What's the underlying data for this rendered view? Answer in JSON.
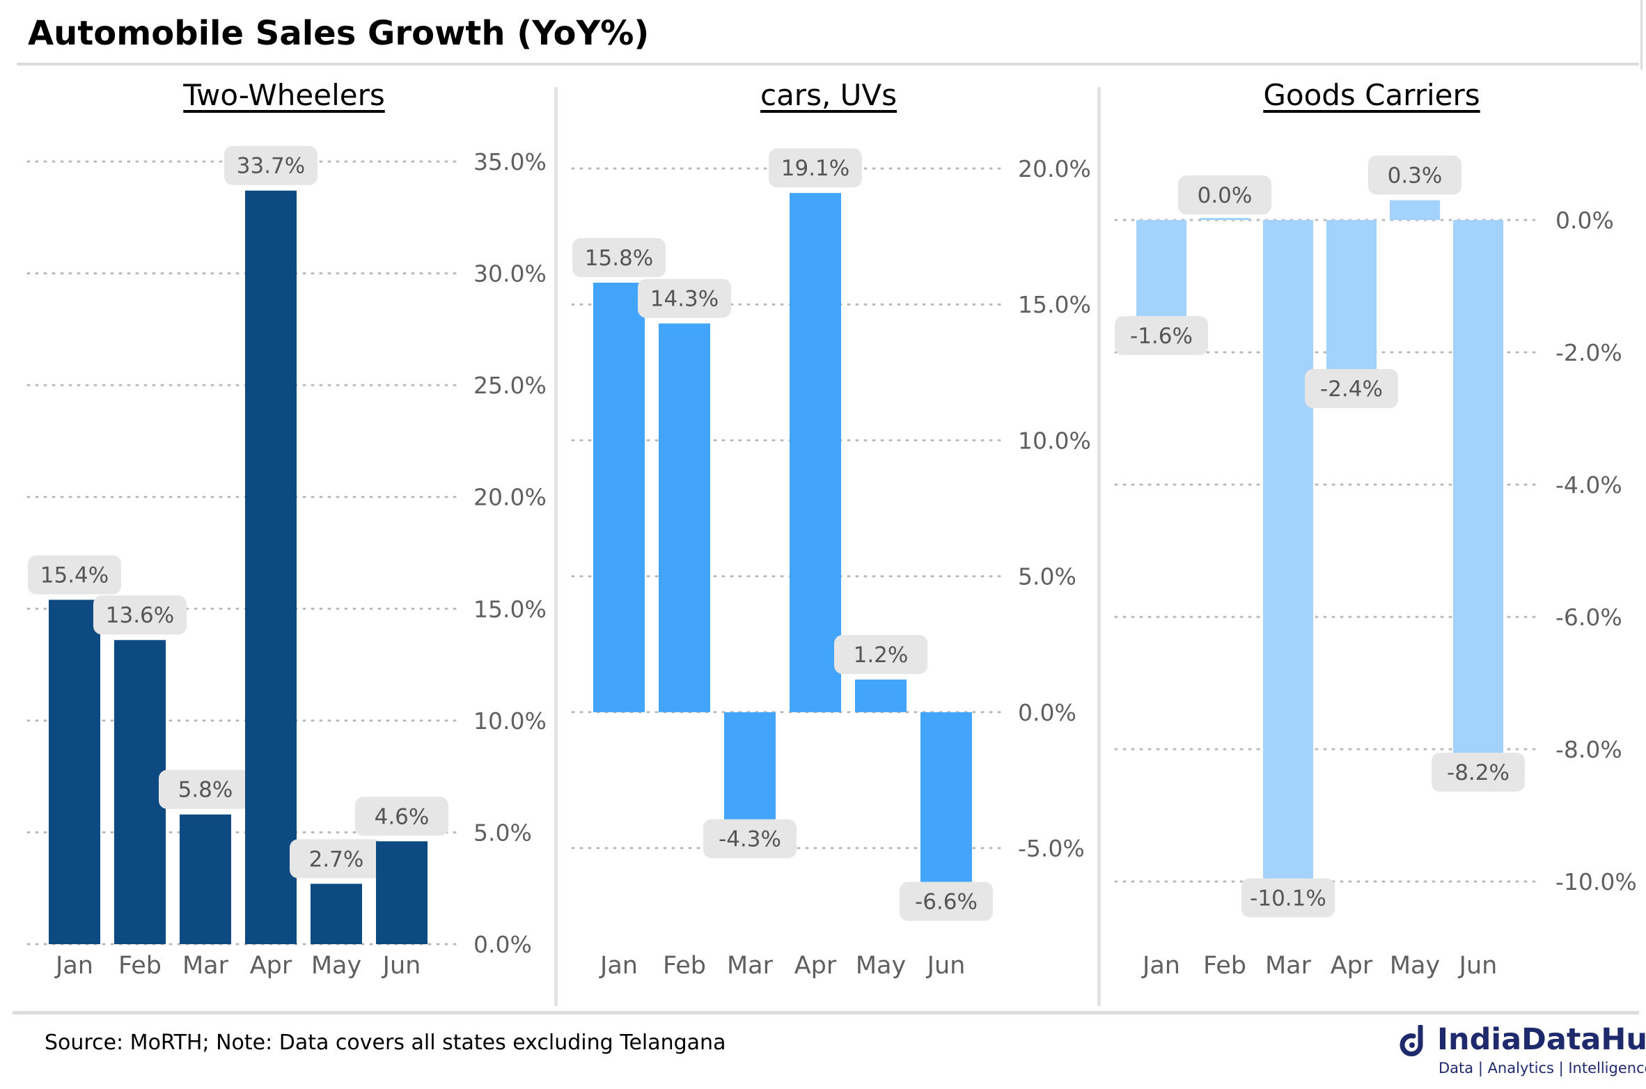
{
  "title": "Automobile Sales Growth (YoY%)",
  "source": "Source: MoRTH; Note: Data covers all states excluding Telangana",
  "logo": {
    "name": "IndiaDataHub",
    "tagline": "Data | Analytics | Intelligence",
    "color": "#1e2a6b"
  },
  "chart_data": [
    {
      "type": "bar",
      "title": "Two-Wheelers",
      "categories": [
        "Jan",
        "Feb",
        "Mar",
        "Apr",
        "May",
        "Jun"
      ],
      "values": [
        15.4,
        13.6,
        5.8,
        33.7,
        2.7,
        4.6
      ],
      "value_labels": [
        "15.4%",
        "13.6%",
        "5.8%",
        "33.7%",
        "2.7%",
        "4.6%"
      ],
      "ylim": [
        0,
        35
      ],
      "yticks": [
        0,
        5,
        10,
        15,
        20,
        25,
        30,
        35
      ],
      "ytick_labels": [
        "0.0%",
        "5.0%",
        "10.0%",
        "15.0%",
        "20.0%",
        "25.0%",
        "30.0%",
        "35.0%"
      ],
      "color": "#0d4a82",
      "grid": true,
      "yaxis_position": "right"
    },
    {
      "type": "bar",
      "title": "cars, UVs",
      "categories": [
        "Jan",
        "Feb",
        "Mar",
        "Apr",
        "May",
        "Jun"
      ],
      "values": [
        15.8,
        14.3,
        -4.3,
        19.1,
        1.2,
        -6.6
      ],
      "value_labels": [
        "15.8%",
        "14.3%",
        "-4.3%",
        "19.1%",
        "1.2%",
        "-6.6%"
      ],
      "ylim": [
        -5,
        20
      ],
      "yticks": [
        -5,
        0,
        5,
        10,
        15,
        20
      ],
      "ytick_labels": [
        "-5.0%",
        "0.0%",
        "5.0%",
        "10.0%",
        "15.0%",
        "20.0%"
      ],
      "color": "#42a5fb",
      "grid": true,
      "yaxis_position": "right"
    },
    {
      "type": "bar",
      "title": "Goods Carriers",
      "categories": [
        "Jan",
        "Feb",
        "Mar",
        "Apr",
        "May",
        "Jun"
      ],
      "values": [
        -1.6,
        0.0,
        -10.1,
        -2.4,
        0.3,
        -8.2
      ],
      "value_labels": [
        "-1.6%",
        "0.0%",
        "-10.1%",
        "-2.4%",
        "0.3%",
        "-8.2%"
      ],
      "ylim": [
        -10,
        0
      ],
      "yticks": [
        -10,
        -8,
        -6,
        -4,
        -2,
        0
      ],
      "ytick_labels": [
        "-10.0%",
        "-8.0%",
        "-6.0%",
        "-4.0%",
        "-2.0%",
        "0.0%"
      ],
      "color": "#a3d2fc",
      "grid": true,
      "yaxis_position": "right"
    }
  ]
}
